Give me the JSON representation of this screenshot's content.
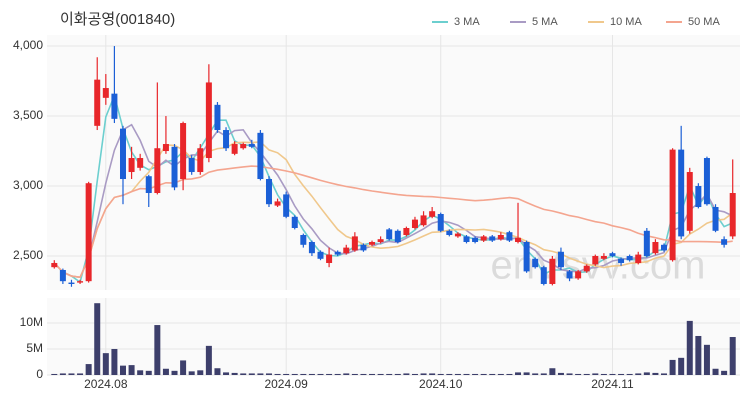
{
  "chart_data": {
    "type": "candlestick",
    "title": "이화공영(001840)",
    "watermark": "enVsvv.com",
    "categories": [
      null,
      null,
      null,
      null,
      null,
      null,
      "2024.08",
      null,
      null,
      null,
      null,
      null,
      null,
      null,
      null,
      null,
      null,
      null,
      null,
      null,
      null,
      null,
      null,
      null,
      null,
      null,
      null,
      "2024.09",
      null,
      null,
      null,
      null,
      null,
      null,
      null,
      null,
      null,
      null,
      null,
      null,
      null,
      null,
      null,
      null,
      null,
      "2024.10",
      null,
      null,
      null,
      null,
      null,
      null,
      null,
      null,
      null,
      null,
      null,
      null,
      null,
      null,
      null,
      null,
      null,
      null,
      null,
      "2024.11",
      null,
      null,
      null,
      null,
      null,
      null,
      null,
      null,
      null,
      null,
      null,
      null,
      null,
      null
    ],
    "open": [
      2420,
      2400,
      2310,
      2310,
      2320,
      3430,
      3630,
      3660,
      3410,
      3100,
      3130,
      3070,
      2950,
      3250,
      3280,
      3050,
      3200,
      3100,
      3200,
      3580,
      3400,
      3230,
      3270,
      3300,
      3380,
      3050,
      2860,
      2940,
      2780,
      2650,
      2600,
      2530,
      2450,
      2530,
      2520,
      2540,
      2580,
      2580,
      2600,
      2690,
      2680,
      2650,
      2700,
      2720,
      2780,
      2800,
      2680,
      2640,
      2640,
      2630,
      2610,
      2640,
      2620,
      2670,
      2600,
      2600,
      2480,
      2420,
      2300,
      2530,
      2390,
      2340,
      2390,
      2440,
      2480,
      2520,
      2480,
      2500,
      2450,
      2680,
      2520,
      2580,
      2470,
      3260,
      2680,
      3000,
      3200,
      2850,
      2620,
      2640
    ],
    "close": [
      2450,
      2320,
      2300,
      2320,
      3020,
      3760,
      3700,
      3480,
      3050,
      3200,
      3200,
      2950,
      3270,
      3300,
      2990,
      3450,
      3100,
      3270,
      3740,
      3400,
      3270,
      3300,
      3300,
      3280,
      3050,
      2870,
      2890,
      2780,
      2700,
      2580,
      2520,
      2480,
      2510,
      2510,
      2560,
      2640,
      2540,
      2600,
      2620,
      2620,
      2600,
      2700,
      2760,
      2790,
      2820,
      2680,
      2650,
      2660,
      2600,
      2600,
      2640,
      2610,
      2650,
      2610,
      2630,
      2390,
      2420,
      2300,
      2480,
      2420,
      2340,
      2390,
      2430,
      2500,
      2500,
      2500,
      2450,
      2470,
      2510,
      2500,
      2600,
      2540,
      3260,
      2640,
      3100,
      2850,
      2870,
      2680,
      2580,
      2950
    ],
    "high": [
      2470,
      2410,
      2330,
      2330,
      3030,
      3920,
      3800,
      4000,
      3430,
      3280,
      3230,
      3080,
      3740,
      3500,
      3300,
      3460,
      3220,
      3300,
      3870,
      3600,
      3420,
      3320,
      3310,
      3330,
      3400,
      3070,
      2910,
      2960,
      2790,
      2660,
      2610,
      2540,
      2560,
      2540,
      2580,
      2670,
      2590,
      2610,
      2640,
      2700,
      2690,
      2710,
      2780,
      2820,
      2850,
      2810,
      2690,
      2670,
      2650,
      2640,
      2650,
      2650,
      2670,
      2680,
      2880,
      2610,
      2490,
      2430,
      2500,
      2560,
      2400,
      2400,
      2440,
      2510,
      2520,
      2530,
      2490,
      2510,
      2530,
      2700,
      2620,
      2590,
      3270,
      3430,
      3130,
      3020,
      3210,
      2870,
      2640,
      3190
    ],
    "low": [
      2410,
      2300,
      2280,
      2300,
      2310,
      3400,
      3580,
      3450,
      2870,
      3050,
      3110,
      2850,
      2940,
      3230,
      2970,
      2970,
      3080,
      3080,
      3170,
      3380,
      3250,
      3220,
      3260,
      3270,
      3040,
      2850,
      2850,
      2770,
      2690,
      2560,
      2500,
      2470,
      2420,
      2500,
      2510,
      2530,
      2530,
      2570,
      2590,
      2610,
      2590,
      2640,
      2690,
      2710,
      2770,
      2670,
      2640,
      2630,
      2590,
      2590,
      2600,
      2600,
      2610,
      2600,
      2590,
      2380,
      2410,
      2290,
      2290,
      2400,
      2320,
      2330,
      2380,
      2430,
      2470,
      2490,
      2430,
      2460,
      2440,
      2490,
      2510,
      2530,
      2460,
      2620,
      2660,
      2840,
      2860,
      2670,
      2560,
      2620
    ],
    "up_color": "#e8262a",
    "down_color": "#1b5fd6",
    "ylim": [
      2257,
      4079
    ],
    "yticks": [
      {
        "value": 2500,
        "label": "2,500"
      },
      {
        "value": 3000,
        "label": "3,000"
      },
      {
        "value": 3500,
        "label": "3,500"
      },
      {
        "value": 4000,
        "label": "4,000"
      }
    ],
    "moving_averages": [
      {
        "name": "3 MA",
        "color": "#6ccfcf"
      },
      {
        "name": "5 MA",
        "color": "#a99bc4"
      },
      {
        "name": "10 MA",
        "color": "#f0c88c"
      },
      {
        "name": "50 MA",
        "color": "#f4a58f"
      }
    ],
    "volume": {
      "values": [
        200000,
        300000,
        300000,
        300000,
        2100000,
        13800000,
        4200000,
        5000000,
        1800000,
        1900000,
        900000,
        800000,
        9600000,
        1200000,
        800000,
        2800000,
        700000,
        900000,
        5600000,
        1300000,
        500000,
        400000,
        300000,
        300000,
        300000,
        300000,
        200000,
        200000,
        200000,
        200000,
        200000,
        200000,
        200000,
        200000,
        300000,
        200000,
        200000,
        200000,
        200000,
        200000,
        200000,
        300000,
        200000,
        300000,
        300000,
        200000,
        200000,
        200000,
        200000,
        200000,
        200000,
        200000,
        200000,
        200000,
        500000,
        500000,
        300000,
        300000,
        1300000,
        400000,
        300000,
        200000,
        200000,
        300000,
        200000,
        200000,
        200000,
        200000,
        300000,
        500000,
        400000,
        300000,
        2900000,
        3300000,
        10400000,
        7500000,
        5800000,
        1200000,
        800000,
        7300000
      ],
      "color": "#3d3f6b",
      "ylim": [
        0,
        14800000
      ],
      "yticks": [
        0,
        {
          "value": 5000000,
          "label": "5M"
        },
        {
          "value": 10000000,
          "label": "10M"
        }
      ]
    },
    "grid": true
  }
}
